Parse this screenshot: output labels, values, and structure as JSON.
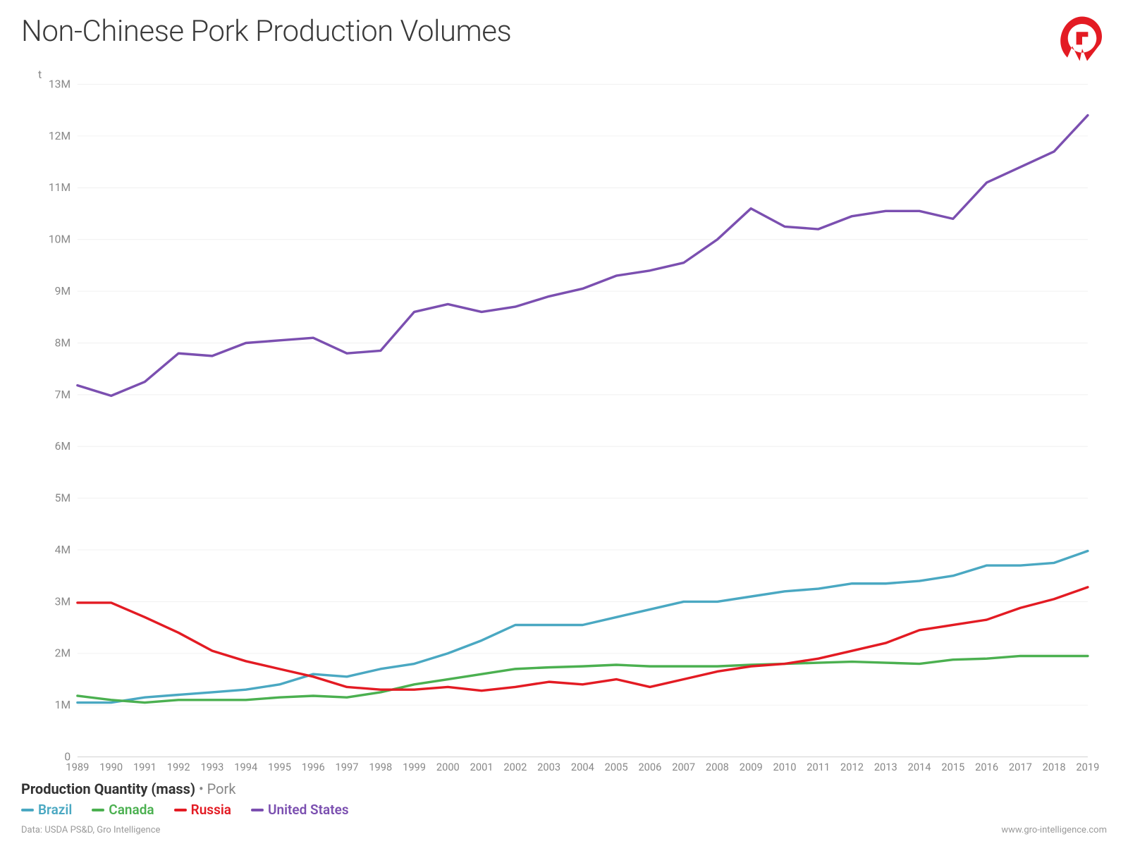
{
  "title": "Non-Chinese Pork Production Volumes",
  "y_unit_label": "t",
  "subtitle_main": "Production Quantity (mass)",
  "subtitle_sep": " • ",
  "subtitle_suffix": "Pork",
  "data_source_prefix": "Data: ",
  "data_source": "USDA PS&D, Gro Intelligence",
  "site_url": "www.gro-intelligence.com",
  "chart": {
    "type": "line",
    "background_color": "#ffffff",
    "grid_color": "#f0f0f0",
    "baseline_color": "#d0d0d0",
    "axis_label_color": "#888888",
    "title_color": "#3a3a3a",
    "title_fontsize": 42,
    "axis_fontsize": 16,
    "line_width": 3.5,
    "x": {
      "min": 1989,
      "max": 2019,
      "ticks": [
        1989,
        1990,
        1991,
        1992,
        1993,
        1994,
        1995,
        1996,
        1997,
        1998,
        1999,
        2000,
        2001,
        2002,
        2003,
        2004,
        2005,
        2006,
        2007,
        2008,
        2009,
        2010,
        2011,
        2012,
        2013,
        2014,
        2015,
        2016,
        2017,
        2018,
        2019
      ]
    },
    "y": {
      "min": 0,
      "max": 13000000,
      "ticks": [
        {
          "v": 0,
          "label": "0"
        },
        {
          "v": 1000000,
          "label": "1M"
        },
        {
          "v": 2000000,
          "label": "2M"
        },
        {
          "v": 3000000,
          "label": "3M"
        },
        {
          "v": 4000000,
          "label": "4M"
        },
        {
          "v": 5000000,
          "label": "5M"
        },
        {
          "v": 6000000,
          "label": "6M"
        },
        {
          "v": 7000000,
          "label": "7M"
        },
        {
          "v": 8000000,
          "label": "8M"
        },
        {
          "v": 9000000,
          "label": "9M"
        },
        {
          "v": 10000000,
          "label": "10M"
        },
        {
          "v": 11000000,
          "label": "11M"
        },
        {
          "v": 12000000,
          "label": "12M"
        },
        {
          "v": 13000000,
          "label": "13M"
        }
      ]
    },
    "years": [
      1989,
      1990,
      1991,
      1992,
      1993,
      1994,
      1995,
      1996,
      1997,
      1998,
      1999,
      2000,
      2001,
      2002,
      2003,
      2004,
      2005,
      2006,
      2007,
      2008,
      2009,
      2010,
      2011,
      2012,
      2013,
      2014,
      2015,
      2016,
      2017,
      2018,
      2019
    ],
    "series": [
      {
        "name": "Brazil",
        "color": "#4aa8c2",
        "values": [
          1050000,
          1050000,
          1150000,
          1200000,
          1250000,
          1300000,
          1400000,
          1600000,
          1550000,
          1700000,
          1800000,
          2000000,
          2250000,
          2550000,
          2550000,
          2550000,
          2700000,
          2850000,
          3000000,
          3000000,
          3100000,
          3200000,
          3250000,
          3350000,
          3350000,
          3400000,
          3500000,
          3700000,
          3700000,
          3750000,
          3980000
        ]
      },
      {
        "name": "Canada",
        "color": "#4bb050",
        "values": [
          1180000,
          1100000,
          1050000,
          1100000,
          1100000,
          1100000,
          1150000,
          1180000,
          1150000,
          1250000,
          1400000,
          1500000,
          1600000,
          1700000,
          1730000,
          1750000,
          1780000,
          1750000,
          1750000,
          1750000,
          1780000,
          1800000,
          1820000,
          1840000,
          1820000,
          1800000,
          1880000,
          1900000,
          1950000,
          1950000,
          1950000
        ]
      },
      {
        "name": "Russia",
        "color": "#e31b23",
        "values": [
          2980000,
          2980000,
          2700000,
          2400000,
          2050000,
          1850000,
          1700000,
          1550000,
          1350000,
          1300000,
          1300000,
          1350000,
          1280000,
          1350000,
          1450000,
          1400000,
          1500000,
          1350000,
          1500000,
          1650000,
          1750000,
          1800000,
          1900000,
          2050000,
          2200000,
          2450000,
          2550000,
          2650000,
          2880000,
          3050000,
          3280000
        ]
      },
      {
        "name": "United States",
        "color": "#7b4fb0",
        "values": [
          7180000,
          6980000,
          7250000,
          7800000,
          7750000,
          8000000,
          8050000,
          8100000,
          7800000,
          7850000,
          8600000,
          8750000,
          8600000,
          8700000,
          8900000,
          9050000,
          9300000,
          9400000,
          9550000,
          10000000,
          10600000,
          10250000,
          10200000,
          10450000,
          10550000,
          10550000,
          10400000,
          11100000,
          11400000,
          11700000,
          12400000
        ]
      }
    ]
  },
  "logo_color": "#e31b23"
}
